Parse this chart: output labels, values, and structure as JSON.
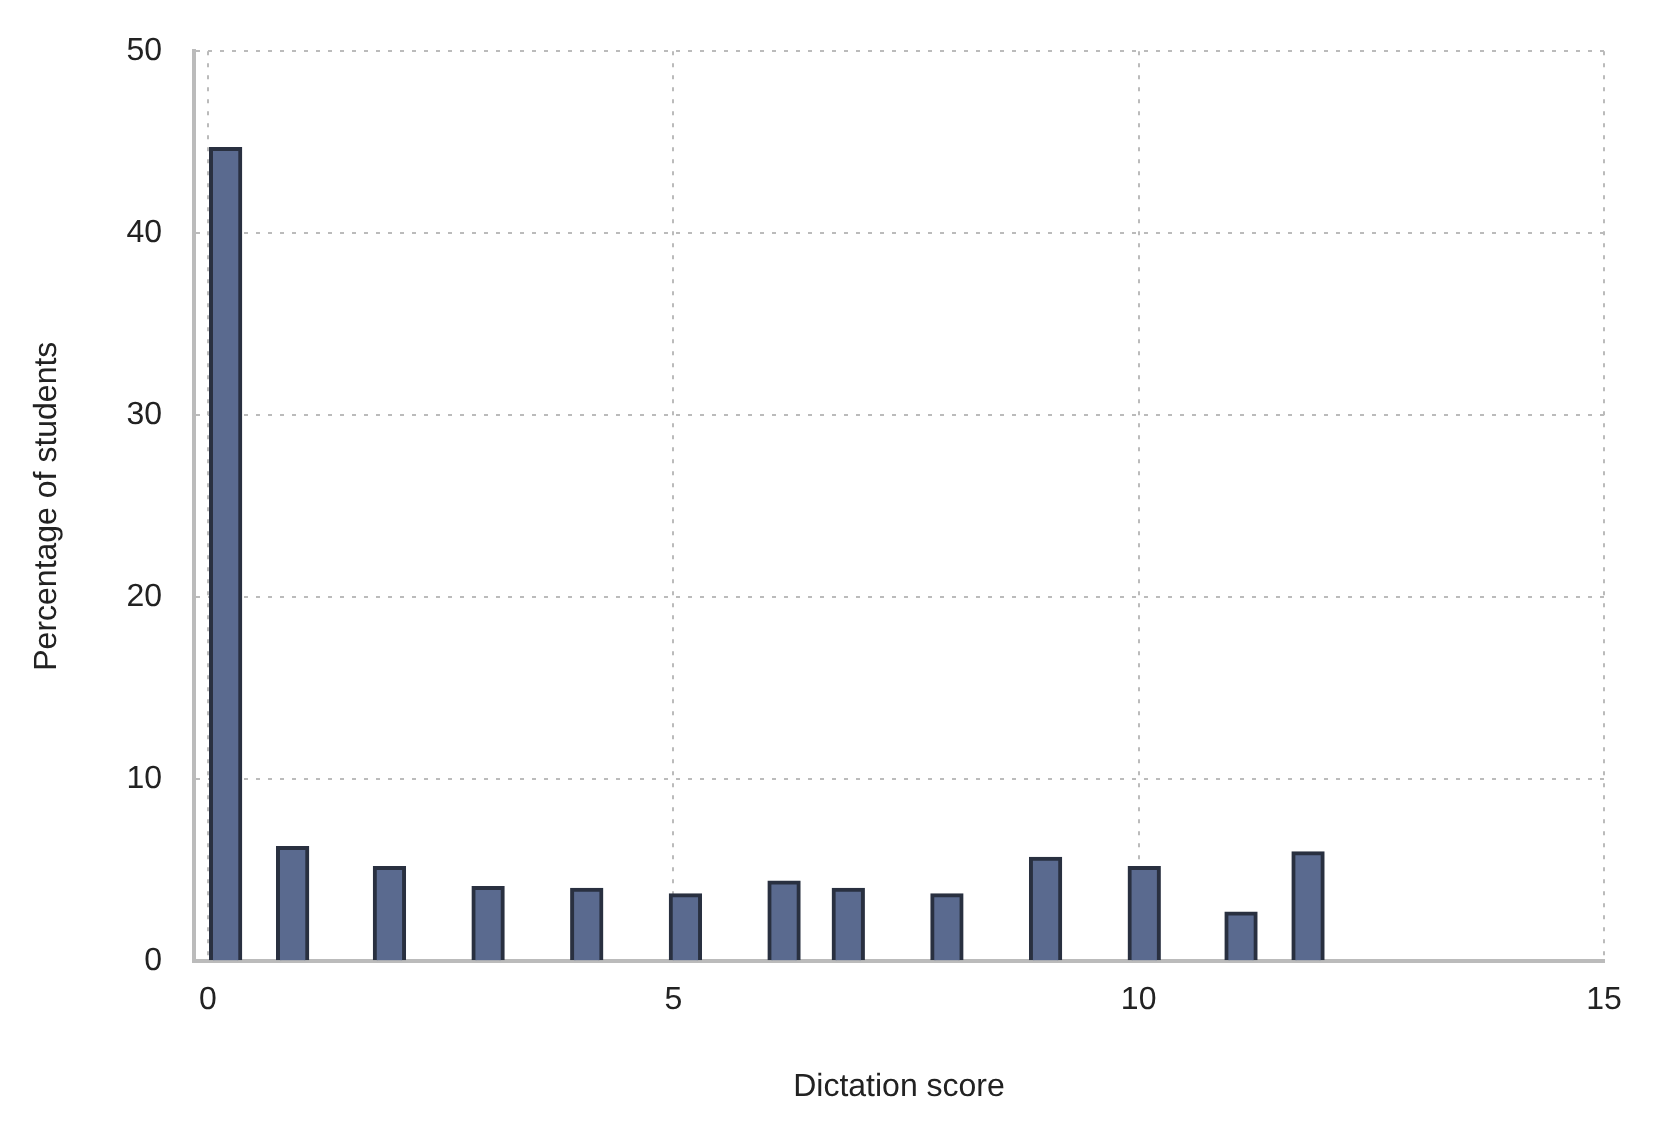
{
  "chart_data": {
    "type": "bar",
    "xlabel": "Dictation score",
    "ylabel": "Percentage of students",
    "x": [
      0.19,
      0.91,
      1.95,
      3.01,
      4.07,
      5.13,
      6.19,
      6.88,
      7.94,
      9.0,
      10.06,
      11.1,
      11.82
    ],
    "values": [
      44.7,
      6.3,
      5.2,
      4.1,
      4.0,
      3.7,
      4.4,
      4.0,
      3.7,
      5.7,
      5.2,
      2.7,
      6.0
    ],
    "color": "#5a6a8f",
    "xlim": [
      -0.15,
      15
    ],
    "xticks": [
      0,
      5,
      10,
      15
    ],
    "ylim": [
      0,
      50
    ],
    "yticks": [
      0,
      10,
      20,
      30,
      40,
      50
    ],
    "grid": true,
    "legend": false
  }
}
